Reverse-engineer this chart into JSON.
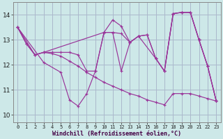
{
  "background_color": "#cde8e8",
  "grid_color": "#aab8cc",
  "line_color": "#993399",
  "xlabel": "Windchill (Refroidissement éolien,°C)",
  "xlim": [
    -0.5,
    23.5
  ],
  "ylim": [
    9.7,
    14.5
  ],
  "yticks": [
    10,
    11,
    12,
    13,
    14
  ],
  "xticks": [
    0,
    1,
    2,
    3,
    4,
    5,
    6,
    7,
    8,
    9,
    10,
    11,
    12,
    13,
    14,
    15,
    16,
    17,
    18,
    19,
    20,
    21,
    22,
    23
  ],
  "lines": [
    {
      "x": [
        0,
        1,
        2,
        3,
        4,
        5,
        6,
        7,
        8,
        9,
        10,
        11,
        12,
        13,
        14,
        15,
        16,
        17,
        18,
        19,
        20,
        21,
        22,
        23
      ],
      "y": [
        13.5,
        12.85,
        12.4,
        12.5,
        12.5,
        12.5,
        12.5,
        12.4,
        11.75,
        11.75,
        13.3,
        13.3,
        13.25,
        12.9,
        13.15,
        13.2,
        12.25,
        11.75,
        14.05,
        14.1,
        14.1,
        13.0,
        11.95,
        10.55
      ]
    },
    {
      "comment": "top curve - peaks at x=11 ~13.8, x=18-19 ~14.1",
      "x": [
        0,
        2,
        3,
        10,
        11,
        12,
        13,
        14,
        16,
        17,
        18,
        19,
        20,
        21,
        22,
        23
      ],
      "y": [
        13.5,
        12.4,
        12.5,
        13.3,
        13.8,
        13.55,
        12.9,
        13.15,
        12.25,
        11.75,
        14.05,
        14.1,
        14.1,
        13.0,
        11.95,
        10.55
      ]
    },
    {
      "x": [
        0,
        3,
        5,
        6,
        7,
        8,
        9,
        10,
        11,
        12,
        13,
        14,
        15,
        16,
        17,
        18,
        19,
        20,
        21,
        22,
        23
      ],
      "y": [
        13.5,
        12.1,
        11.7,
        10.6,
        10.35,
        10.85,
        11.75,
        13.3,
        13.3,
        11.75,
        12.9,
        13.15,
        13.2,
        12.25,
        11.75,
        14.05,
        14.1,
        14.1,
        13.0,
        11.95,
        10.55
      ]
    },
    {
      "x": [
        0,
        1,
        2,
        3,
        4,
        5,
        6,
        7,
        8,
        9,
        10,
        11,
        12,
        13,
        14,
        15,
        16,
        17,
        18,
        19,
        20,
        21,
        22,
        23
      ],
      "y": [
        13.5,
        12.85,
        12.4,
        12.5,
        12.45,
        12.35,
        12.15,
        11.95,
        11.7,
        11.5,
        11.3,
        11.15,
        11.0,
        10.85,
        10.75,
        10.6,
        10.5,
        10.4,
        10.85,
        10.85,
        10.85,
        10.75,
        10.65,
        10.55
      ]
    }
  ]
}
